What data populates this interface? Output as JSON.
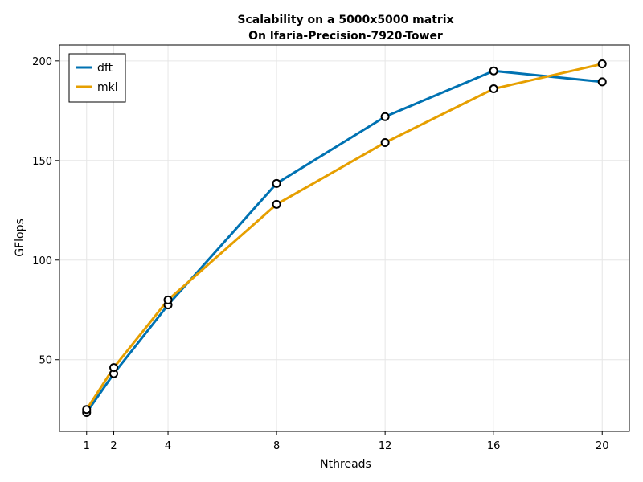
{
  "chart_data": {
    "type": "line",
    "title": "Scalability on a 5000x5000 matrix",
    "subtitle": "On lfaria-Precision-7920-Tower",
    "xlabel": "Nthreads",
    "ylabel": "GFlops",
    "x": [
      1,
      2,
      4,
      8,
      12,
      16,
      20
    ],
    "xticks": [
      1,
      2,
      4,
      8,
      12,
      16,
      20
    ],
    "yticks": [
      50,
      100,
      150,
      200
    ],
    "xlim": [
      0,
      21
    ],
    "ylim": [
      14,
      208
    ],
    "grid": true,
    "legend_position": "top-left",
    "series": [
      {
        "name": "dft",
        "color": "#0072b2",
        "values": [
          23.5,
          43,
          77.5,
          138.5,
          172,
          195,
          189.5
        ]
      },
      {
        "name": "mkl",
        "color": "#e69f00",
        "values": [
          25,
          46,
          80,
          128,
          159,
          186,
          198.5
        ]
      }
    ]
  }
}
